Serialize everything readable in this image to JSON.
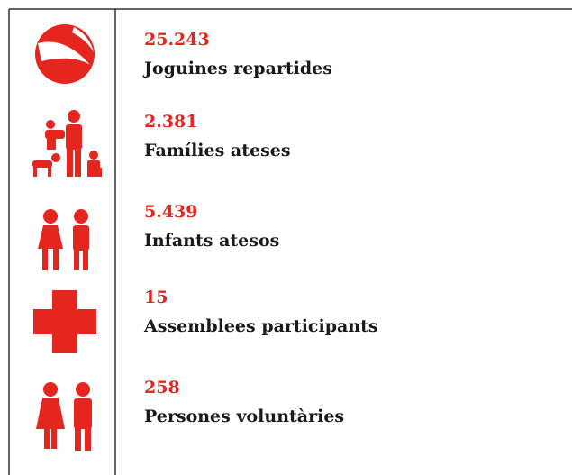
{
  "items": [
    {
      "value": "25.243",
      "label": "Joguines repartides"
    },
    {
      "value": "2.381",
      "label": "Famílies ateses"
    },
    {
      "value": "5.439",
      "label": "Infants atesos"
    },
    {
      "value": "15",
      "label": "Assemblees participants"
    },
    {
      "value": "258",
      "label": "Persones voluntàries"
    }
  ]
}
